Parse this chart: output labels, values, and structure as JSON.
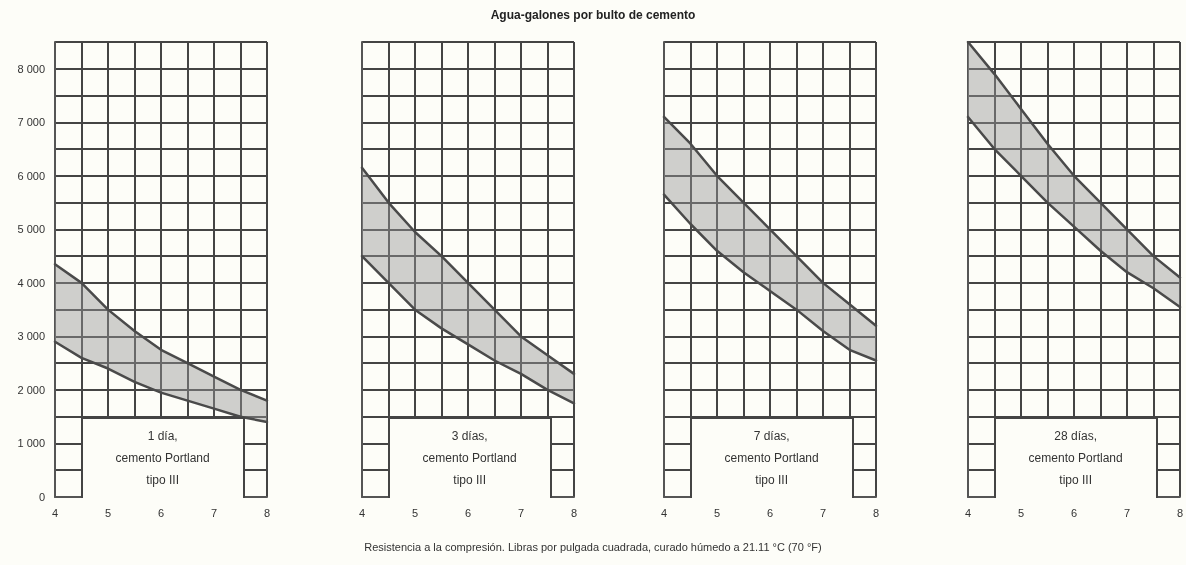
{
  "chart_data": [
    {
      "type": "line",
      "x": [
        4,
        4.5,
        5,
        5.5,
        6,
        6.5,
        7,
        7.5,
        8
      ],
      "xlim": [
        4,
        8
      ],
      "xticks": [
        4,
        {
          "value": 4.5,
          "label": null
        },
        5,
        {
          "value": 5.5,
          "label": null
        },
        6,
        {
          "value": 6.5,
          "label": null
        },
        7,
        {
          "value": 7.5,
          "label": null
        },
        8
      ],
      "ylim": [
        0,
        8500
      ],
      "yticks": [
        0,
        {
          "value": 500,
          "label": null
        },
        {
          "value": 1000,
          "label": "1 000"
        },
        {
          "value": 1500,
          "label": null
        },
        {
          "value": 2000,
          "label": "2 000"
        },
        {
          "value": 2500,
          "label": null
        },
        {
          "value": 3000,
          "label": "3 000"
        },
        {
          "value": 3500,
          "label": null
        },
        {
          "value": 4000,
          "label": "4 000"
        },
        {
          "value": 4500,
          "label": null
        },
        {
          "value": 5000,
          "label": "5 000"
        },
        {
          "value": 5500,
          "label": null
        },
        {
          "value": 6000,
          "label": "6 000"
        },
        {
          "value": 6500,
          "label": null
        },
        {
          "value": 7000,
          "label": "7 000"
        },
        {
          "value": 7500,
          "label": null
        },
        {
          "value": 8000,
          "label": "8 000"
        },
        {
          "value": 8500,
          "label": null
        }
      ],
      "grid": true,
      "marker": "none",
      "line_style": "solid",
      "annotations": [
        "1 día,\ncemento Portland\ntipo III"
      ],
      "series": [
        {
          "color": "#4a4a4a",
          "values": [
            4350,
            4000,
            3500,
            3100,
            2750,
            2500,
            2250,
            2000,
            1800
          ],
          "upper": [
            4350,
            4000,
            3500,
            3100,
            2750,
            2500,
            2250,
            2000,
            1800
          ],
          "lower": [
            2900,
            2600,
            2400,
            2150,
            1950,
            1800,
            1650,
            1500,
            1400
          ]
        },
        {
          "color": "#4a4a4a",
          "values": [
            2900,
            2600,
            2400,
            2150,
            1950,
            1800,
            1650,
            1500,
            1400
          ]
        }
      ]
    },
    {
      "type": "line",
      "title": "Agua-galones por bulto de cemento",
      "xlabel": "Resistencia a la compresión. Libras por pulgada cuadrada, curado húmedo a 21.11 °C (70 °F)",
      "x": [
        4,
        4.5,
        5,
        5.5,
        6,
        6.5,
        7,
        7.5,
        8
      ],
      "xlim": [
        4,
        8
      ],
      "xticks": [
        4,
        {
          "value": 4.5,
          "label": null
        },
        5,
        {
          "value": 5.5,
          "label": null
        },
        6,
        {
          "value": 6.5,
          "label": null
        },
        7,
        {
          "value": 7.5,
          "label": null
        },
        8
      ],
      "ylim": [
        0,
        8500
      ],
      "yticks": [
        {
          "value": 0,
          "label": null
        },
        {
          "value": 500,
          "label": null
        },
        {
          "value": 1000,
          "label": null
        },
        {
          "value": 1500,
          "label": null
        },
        {
          "value": 2000,
          "label": null
        },
        {
          "value": 2500,
          "label": null
        },
        {
          "value": 3000,
          "label": null
        },
        {
          "value": 3500,
          "label": null
        },
        {
          "value": 4000,
          "label": null
        },
        {
          "value": 4500,
          "label": null
        },
        {
          "value": 5000,
          "label": null
        },
        {
          "value": 5500,
          "label": null
        },
        {
          "value": 6000,
          "label": null
        },
        {
          "value": 6500,
          "label": null
        },
        {
          "value": 7000,
          "label": null
        },
        {
          "value": 7500,
          "label": null
        },
        {
          "value": 8000,
          "label": null
        },
        {
          "value": 8500,
          "label": null
        }
      ],
      "tick_labels": "x",
      "grid": true,
      "marker": "none",
      "line_style": "solid",
      "annotations": [
        "3 días,\ncemento Portland\ntipo III"
      ],
      "series": [
        {
          "color": "#4a4a4a",
          "values": [
            6150,
            5500,
            4950,
            4500,
            4000,
            3500,
            3000,
            2650,
            2300
          ],
          "upper": [
            6150,
            5500,
            4950,
            4500,
            4000,
            3500,
            3000,
            2650,
            2300
          ],
          "lower": [
            4500,
            4000,
            3500,
            3150,
            2850,
            2550,
            2300,
            2000,
            1750
          ]
        },
        {
          "color": "#4a4a4a",
          "values": [
            4500,
            4000,
            3500,
            3150,
            2850,
            2550,
            2300,
            2000,
            1750
          ]
        }
      ]
    },
    {
      "type": "line",
      "x": [
        4,
        4.5,
        5,
        5.5,
        6,
        6.5,
        7,
        7.5,
        8
      ],
      "xlim": [
        4,
        8
      ],
      "xticks": [
        4,
        {
          "value": 4.5,
          "label": null
        },
        5,
        {
          "value": 5.5,
          "label": null
        },
        6,
        {
          "value": 6.5,
          "label": null
        },
        7,
        {
          "value": 7.5,
          "label": null
        },
        8
      ],
      "ylim": [
        0,
        8500
      ],
      "yticks": [
        {
          "value": 0,
          "label": null
        },
        {
          "value": 500,
          "label": null
        },
        {
          "value": 1000,
          "label": null
        },
        {
          "value": 1500,
          "label": null
        },
        {
          "value": 2000,
          "label": null
        },
        {
          "value": 2500,
          "label": null
        },
        {
          "value": 3000,
          "label": null
        },
        {
          "value": 3500,
          "label": null
        },
        {
          "value": 4000,
          "label": null
        },
        {
          "value": 4500,
          "label": null
        },
        {
          "value": 5000,
          "label": null
        },
        {
          "value": 5500,
          "label": null
        },
        {
          "value": 6000,
          "label": null
        },
        {
          "value": 6500,
          "label": null
        },
        {
          "value": 7000,
          "label": null
        },
        {
          "value": 7500,
          "label": null
        },
        {
          "value": 8000,
          "label": null
        },
        {
          "value": 8500,
          "label": null
        }
      ],
      "tick_labels": "x",
      "grid": true,
      "marker": "none",
      "line_style": "solid",
      "annotations": [
        "7 días,\ncemento Portland\ntipo III"
      ],
      "series": [
        {
          "color": "#4a4a4a",
          "values": [
            7100,
            6600,
            6000,
            5500,
            5000,
            4500,
            4000,
            3600,
            3200
          ],
          "upper": [
            7100,
            6600,
            6000,
            5500,
            5000,
            4500,
            4000,
            3600,
            3200
          ],
          "lower": [
            5650,
            5100,
            4600,
            4200,
            3850,
            3500,
            3100,
            2750,
            2550
          ]
        },
        {
          "color": "#4a4a4a",
          "values": [
            5650,
            5100,
            4600,
            4200,
            3850,
            3500,
            3100,
            2750,
            2550
          ]
        }
      ]
    },
    {
      "type": "line",
      "x": [
        4,
        4.5,
        5,
        5.5,
        6,
        6.5,
        7,
        7.5,
        8
      ],
      "xlim": [
        4,
        8
      ],
      "xticks": [
        4,
        {
          "value": 4.5,
          "label": null
        },
        5,
        {
          "value": 5.5,
          "label": null
        },
        6,
        {
          "value": 6.5,
          "label": null
        },
        7,
        {
          "value": 7.5,
          "label": null
        },
        8
      ],
      "ylim": [
        0,
        8500
      ],
      "yticks": [
        {
          "value": 0,
          "label": null
        },
        {
          "value": 500,
          "label": null
        },
        {
          "value": 1000,
          "label": null
        },
        {
          "value": 1500,
          "label": null
        },
        {
          "value": 2000,
          "label": null
        },
        {
          "value": 2500,
          "label": null
        },
        {
          "value": 3000,
          "label": null
        },
        {
          "value": 3500,
          "label": null
        },
        {
          "value": 4000,
          "label": null
        },
        {
          "value": 4500,
          "label": null
        },
        {
          "value": 5000,
          "label": null
        },
        {
          "value": 5500,
          "label": null
        },
        {
          "value": 6000,
          "label": null
        },
        {
          "value": 6500,
          "label": null
        },
        {
          "value": 7000,
          "label": null
        },
        {
          "value": 7500,
          "label": null
        },
        {
          "value": 8000,
          "label": null
        },
        {
          "value": 8500,
          "label": null
        }
      ],
      "tick_labels": "x",
      "grid": true,
      "marker": "none",
      "line_style": "solid",
      "annotations": [
        "28 días,\ncemento Portland\ntipo III"
      ],
      "series": [
        {
          "color": "#4a4a4a",
          "values": [
            8500,
            7900,
            7250,
            6600,
            6000,
            5500,
            5000,
            4500,
            4100
          ],
          "upper": [
            8500,
            7900,
            7250,
            6600,
            6000,
            5500,
            5000,
            4500,
            4100
          ],
          "lower": [
            7100,
            6500,
            6000,
            5500,
            5050,
            4600,
            4200,
            3900,
            3550
          ]
        },
        {
          "color": "#4a4a4a",
          "values": [
            7100,
            6500,
            6000,
            5500,
            5050,
            4600,
            4200,
            3900,
            3550
          ]
        }
      ]
    }
  ]
}
